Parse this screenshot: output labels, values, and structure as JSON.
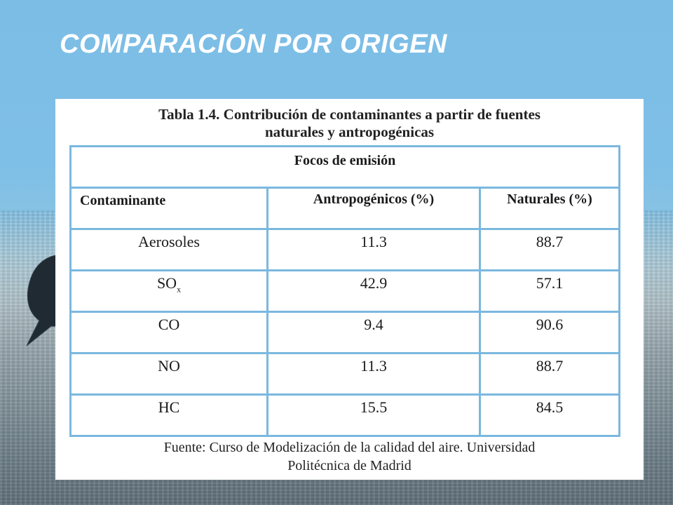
{
  "slide": {
    "title": "COMPARACIÓN POR ORIGEN"
  },
  "table": {
    "caption_line1": "Tabla 1.4. Contribución de contaminantes a partir de fuentes",
    "caption_line2": "naturales y antropogénicas",
    "group_header": "Focos de emisión",
    "columns": [
      "Contaminante",
      "Antropogénicos (%)",
      "Naturales (%)"
    ],
    "rows": [
      {
        "pollutant": "Aerosoles",
        "sub": "",
        "anthropogenic": "11.3",
        "natural": "88.7"
      },
      {
        "pollutant": "SO",
        "sub": "x",
        "anthropogenic": "42.9",
        "natural": "57.1"
      },
      {
        "pollutant": "CO",
        "sub": "",
        "anthropogenic": "9.4",
        "natural": "90.6"
      },
      {
        "pollutant": "NO",
        "sub": "",
        "anthropogenic": "11.3",
        "natural": "88.7"
      },
      {
        "pollutant": "HC",
        "sub": "",
        "anthropogenic": "15.5",
        "natural": "84.5"
      }
    ],
    "source_line1": "Fuente: Curso de Modelización de la calidad del aire. Universidad",
    "source_line2": "Politécnica de Madrid"
  },
  "colors": {
    "table_border": "#7ab8df",
    "bubble": "#1f2a33",
    "title": "#ffffff"
  },
  "icons": [
    "speech-bubble-icon"
  ]
}
